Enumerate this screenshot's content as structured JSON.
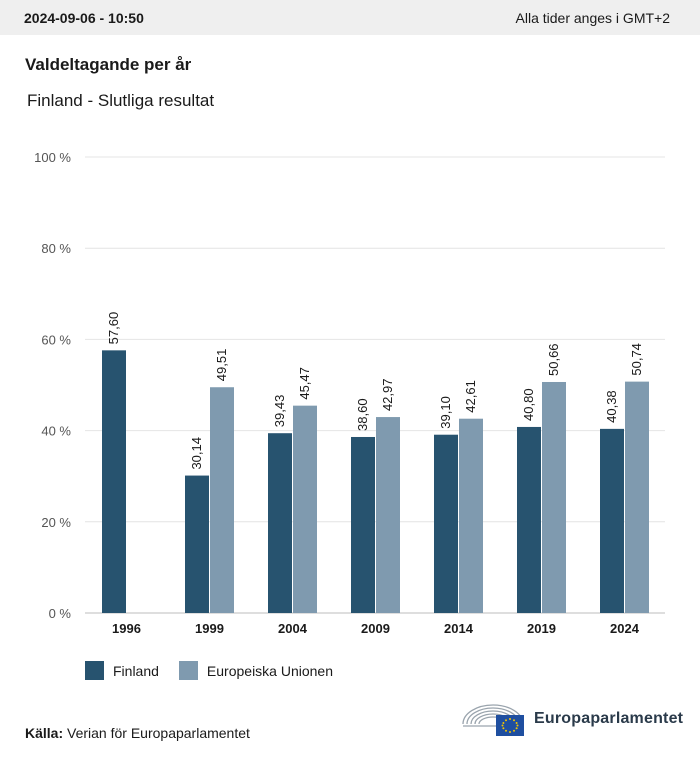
{
  "header": {
    "timestamp": "2024-09-06 - 10:50",
    "timezone_note": "Alla tider anges i GMT+2"
  },
  "title": "Valdeltagande per år",
  "subtitle": "Finland - Slutliga resultat",
  "chart_data": {
    "type": "bar",
    "title": "Valdeltagande per år",
    "subtitle": "Finland - Slutliga resultat",
    "categories": [
      "1996",
      "1999",
      "2004",
      "2009",
      "2014",
      "2019",
      "2024"
    ],
    "series": [
      {
        "name": "Finland",
        "color": "#27536f",
        "values": [
          57.6,
          30.14,
          39.43,
          38.6,
          39.1,
          40.8,
          40.38
        ],
        "labels": [
          "57,60",
          "30,14",
          "39,43",
          "38,60",
          "39,10",
          "40,80",
          "40,38"
        ]
      },
      {
        "name": "Europeiska Unionen",
        "color": "#7f9aaf",
        "values": [
          null,
          49.51,
          45.47,
          42.97,
          42.61,
          50.66,
          50.74
        ],
        "labels": [
          null,
          "49,51",
          "45,47",
          "42,97",
          "42,61",
          "50,66",
          "50,74"
        ]
      }
    ],
    "y_ticks": [
      "0 %",
      "20 %",
      "40 %",
      "60 %",
      "80 %",
      "100 %"
    ],
    "ylim": [
      0,
      100
    ],
    "grid": true,
    "legend_position": "bottom-left"
  },
  "legend": {
    "items": [
      {
        "label": "Finland",
        "color": "#27536f"
      },
      {
        "label": "Europeiska Unionen",
        "color": "#7f9aaf"
      }
    ]
  },
  "source": {
    "label": "Källa:",
    "text": "Verian för Europaparlamentet"
  },
  "logo": {
    "text": "Europaparlamentet",
    "icon": "european-parliament-logo-icon"
  }
}
